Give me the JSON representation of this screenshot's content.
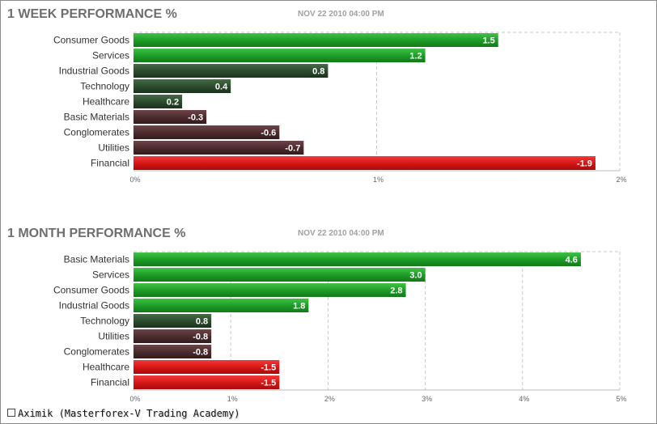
{
  "footer": {
    "text": "Aximik (Masterforex-V Trading Academy)",
    "icon": "square-icon"
  },
  "chart_data": [
    {
      "type": "bar",
      "orientation": "horizontal",
      "title": "1 WEEK PERFORMANCE %",
      "subtitle": "NOV 22 2010 04:00 PM",
      "categories": [
        "Consumer Goods",
        "Services",
        "Industrial Goods",
        "Technology",
        "Healthcare",
        "Basic Materials",
        "Conglomerates",
        "Utilities",
        "Financial"
      ],
      "values": [
        1.5,
        1.2,
        0.8,
        0.4,
        0.2,
        -0.3,
        -0.6,
        -0.7,
        -1.9
      ],
      "value_labels": [
        "1.5",
        "1.2",
        "0.8",
        "0.4",
        "0.2",
        "-0.3",
        "-0.6",
        "-0.7",
        "-1.9"
      ],
      "bar_lengths_abs": [
        1.5,
        1.2,
        0.8,
        0.4,
        0.2,
        0.3,
        0.6,
        0.7,
        1.9
      ],
      "xlim": [
        0,
        2
      ],
      "ticks": [
        0,
        1,
        2
      ],
      "tick_labels": [
        "0%",
        "1%",
        "2%"
      ],
      "grid": "vertical-dashed",
      "colors": {
        "strong_positive": "#1c9a25",
        "weak_positive": "#2a4a2c",
        "weak_negative": "#4a2a2c",
        "strong_negative": "#d41414"
      }
    },
    {
      "type": "bar",
      "orientation": "horizontal",
      "title": "1 MONTH PERFORMANCE %",
      "subtitle": "NOV 22 2010 04:00 PM",
      "categories": [
        "Basic Materials",
        "Services",
        "Consumer Goods",
        "Industrial Goods",
        "Technology",
        "Utilities",
        "Conglomerates",
        "Healthcare",
        "Financial"
      ],
      "values": [
        4.6,
        3.0,
        2.8,
        1.8,
        0.8,
        -0.8,
        -0.8,
        -1.5,
        -1.5
      ],
      "value_labels": [
        "4.6",
        "3.0",
        "2.8",
        "1.8",
        "0.8",
        "-0.8",
        "-0.8",
        "-1.5",
        "-1.5"
      ],
      "bar_lengths_abs": [
        4.6,
        3.0,
        2.8,
        1.8,
        0.8,
        0.8,
        0.8,
        1.5,
        1.5
      ],
      "xlim": [
        0,
        5
      ],
      "ticks": [
        0,
        1,
        2,
        3,
        4,
        5
      ],
      "tick_labels": [
        "0%",
        "1%",
        "2%",
        "3%",
        "4%",
        "5%"
      ],
      "grid": "vertical-dashed",
      "colors": {
        "strong_positive": "#1c9a25",
        "weak_positive": "#2a4a2c",
        "weak_negative": "#4a2a2c",
        "strong_negative": "#d41414"
      }
    }
  ]
}
